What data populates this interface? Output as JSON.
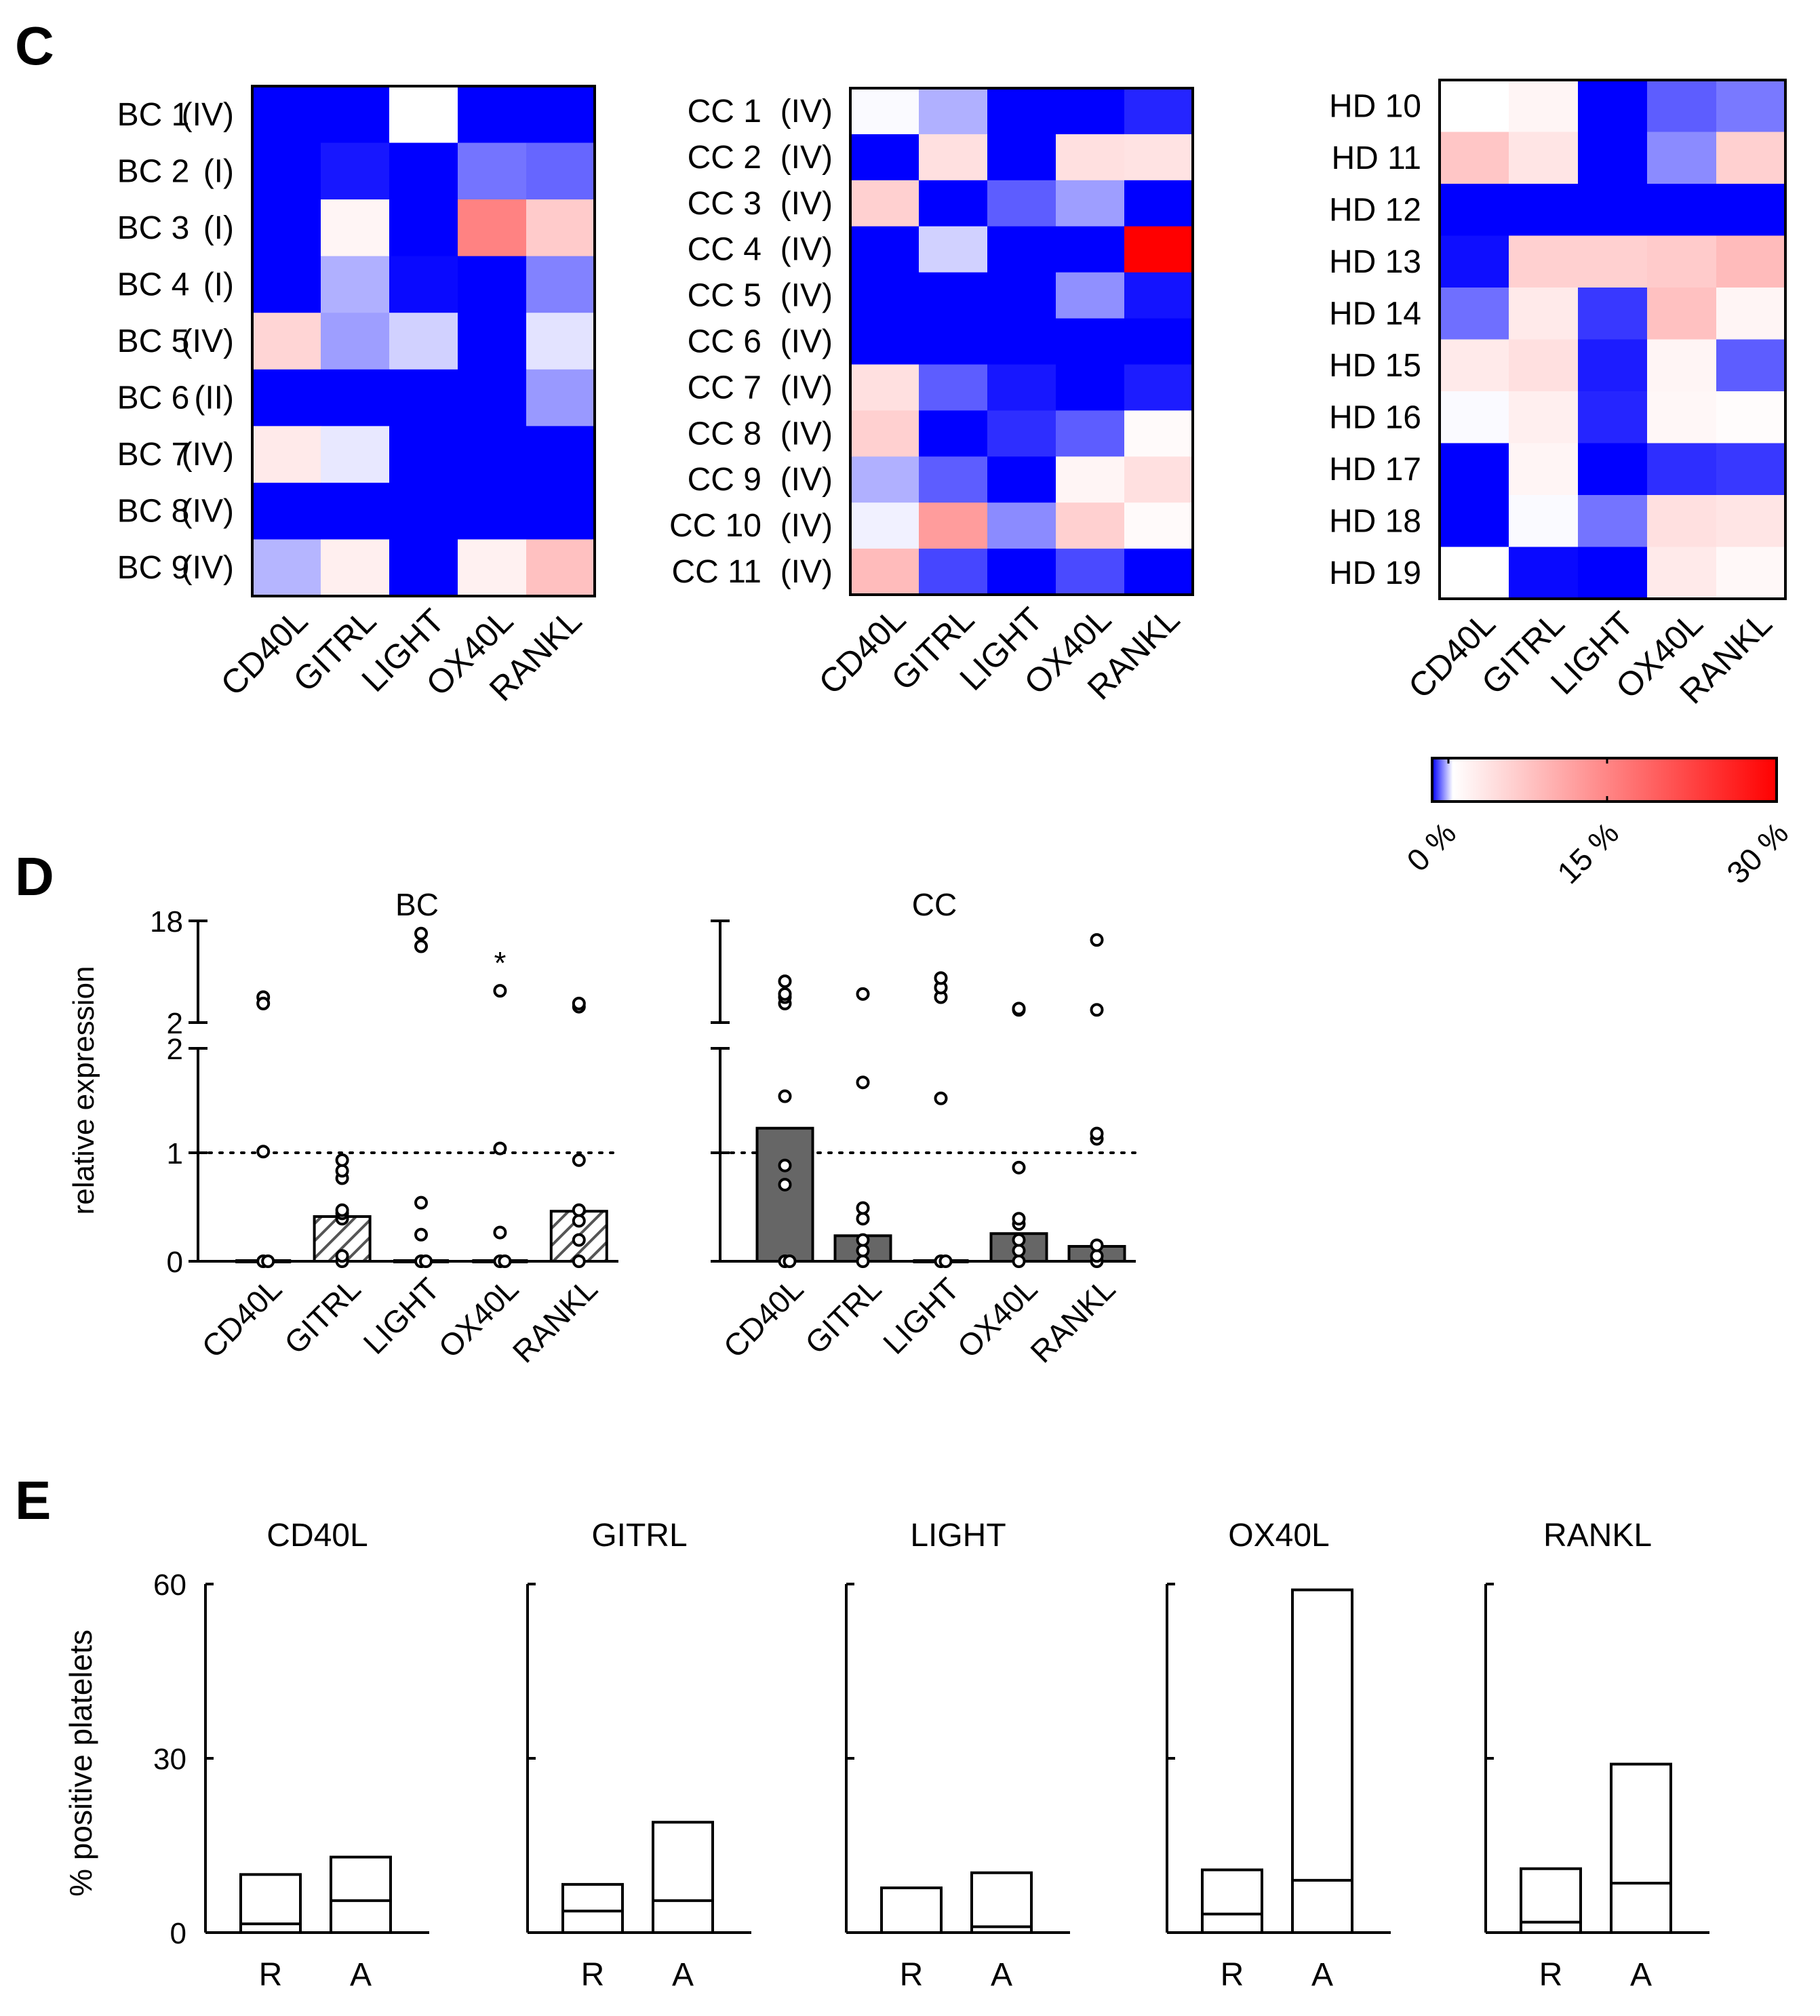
{
  "panels": {
    "c": "C",
    "d": "D",
    "e": "E"
  },
  "ligands": [
    "CD40L",
    "GITRL",
    "LIGHT",
    "OX40L",
    "RANKL"
  ],
  "heatmaps": [
    {
      "id": "bc",
      "rows": [
        {
          "name": "BC 1",
          "stage": "(IV)",
          "values": [
            0,
            0,
            5.5,
            0,
            0
          ]
        },
        {
          "name": "BC 2",
          "stage": "(I)",
          "values": [
            0,
            0.5,
            0,
            2.5,
            2.2
          ]
        },
        {
          "name": "BC 3",
          "stage": "(I)",
          "values": [
            0,
            6.5,
            0,
            17.5,
            10.5
          ]
        },
        {
          "name": "BC 4",
          "stage": "(I)",
          "values": [
            0,
            3.8,
            0.2,
            0,
            2.8
          ]
        },
        {
          "name": "BC 5",
          "stage": "(IV)",
          "values": [
            9.5,
            3.4,
            4.5,
            0,
            4.9
          ]
        },
        {
          "name": "BC 6",
          "stage": "(II)",
          "values": [
            0,
            0,
            0,
            0,
            3.3
          ]
        },
        {
          "name": "BC 7",
          "stage": "(IV)",
          "values": [
            7.5,
            5,
            0,
            0,
            0
          ]
        },
        {
          "name": "BC 8",
          "stage": "(IV)",
          "values": [
            0,
            0,
            0,
            0,
            0
          ]
        },
        {
          "name": "BC 9",
          "stage": "(IV)",
          "values": [
            3.9,
            7,
            0,
            6.8,
            11.5
          ]
        }
      ]
    },
    {
      "id": "cc",
      "rows": [
        {
          "name": "CC 1",
          "stage": "(IV)",
          "values": [
            5.4,
            3.8,
            0,
            0,
            0.8
          ]
        },
        {
          "name": "CC 2",
          "stage": "(IV)",
          "values": [
            0,
            8.5,
            0,
            8.5,
            8.2
          ]
        },
        {
          "name": "CC 3",
          "stage": "(IV)",
          "values": [
            10,
            0,
            2,
            3.4,
            0
          ]
        },
        {
          "name": "CC 4",
          "stage": "(IV)",
          "values": [
            0,
            4.5,
            0,
            0,
            30
          ]
        },
        {
          "name": "CC 5",
          "stage": "(IV)",
          "values": [
            0,
            0,
            0,
            3.1,
            0.4
          ]
        },
        {
          "name": "CC 6",
          "stage": "(IV)",
          "values": [
            0,
            0,
            0,
            0,
            0
          ]
        },
        {
          "name": "CC 7",
          "stage": "(IV)",
          "values": [
            8.5,
            2,
            0.5,
            0,
            0.6
          ]
        },
        {
          "name": "CC 8",
          "stage": "(IV)",
          "values": [
            10,
            0,
            1,
            2,
            6
          ]
        },
        {
          "name": "CC 9",
          "stage": "(IV)",
          "values": [
            3.8,
            2,
            0,
            6.5,
            8.5
          ]
        },
        {
          "name": "CC 10",
          "stage": "(IV)",
          "values": [
            5.2,
            15,
            3,
            10,
            6
          ]
        },
        {
          "name": "CC 11",
          "stage": "(IV)",
          "values": [
            12,
            1.5,
            0,
            1.6,
            0
          ]
        }
      ]
    },
    {
      "id": "hd",
      "rows": [
        {
          "name": "HD 10",
          "values": [
            5.5,
            6.5,
            0,
            2,
            2.6
          ]
        },
        {
          "name": "HD 11",
          "values": [
            11,
            8,
            0,
            3,
            10
          ]
        },
        {
          "name": "HD 12",
          "values": [
            0,
            0,
            0,
            0,
            0
          ]
        },
        {
          "name": "HD 13",
          "values": [
            0.3,
            10,
            10,
            10.5,
            12
          ]
        },
        {
          "name": "HD 14",
          "values": [
            2.4,
            7.5,
            1.2,
            11.5,
            6.5
          ]
        },
        {
          "name": "HD 15",
          "values": [
            7.5,
            8.5,
            0.6,
            6.5,
            2
          ]
        },
        {
          "name": "HD 16",
          "values": [
            5.4,
            7,
            0.8,
            6.3,
            5.8
          ]
        },
        {
          "name": "HD 17",
          "values": [
            0,
            6.5,
            0,
            1,
            1.2
          ]
        },
        {
          "name": "HD 18",
          "values": [
            0,
            5.4,
            2.5,
            8.5,
            8
          ]
        },
        {
          "name": "HD 19",
          "values": [
            5.5,
            0.2,
            0,
            7.5,
            6.2
          ]
        }
      ]
    }
  ],
  "colorbar": {
    "ticks": [
      "0 %",
      "15 %",
      "30 %"
    ],
    "colors": [
      "#0000ff",
      "#ffffff",
      "#ff0000"
    ],
    "range": [
      0,
      30
    ]
  },
  "chart_data": [
    {
      "type": "bar",
      "title": "BC",
      "categories": [
        "CD40L",
        "GITRL",
        "LIGHT",
        "OX40L",
        "RANKL"
      ],
      "values": [
        0,
        0.42,
        0,
        0,
        0.47
      ],
      "ylabel": "relative expression",
      "ylim": [
        0,
        18
      ],
      "ybreak": [
        2,
        2
      ],
      "yticks": [
        "0",
        "1",
        "2",
        "2",
        "18"
      ],
      "reference_line": 1,
      "fill": "hatched",
      "points": [
        [
          0,
          0,
          1.03,
          6,
          5
        ],
        [
          0,
          0.05,
          0.4,
          0.45,
          0.48,
          0.78,
          0.85,
          0.95
        ],
        [
          0,
          0,
          0.25,
          0.55,
          14,
          16
        ],
        [
          0,
          0,
          0.27,
          1.06,
          7
        ],
        [
          0,
          0.2,
          0.38,
          0.48,
          0.95,
          4.5,
          5
        ]
      ],
      "annotation": {
        "category": "OX40L",
        "text": "*"
      }
    },
    {
      "type": "bar",
      "title": "CC",
      "categories": [
        "CD40L",
        "GITRL",
        "LIGHT",
        "OX40L",
        "RANKL"
      ],
      "values": [
        1.25,
        0.24,
        0,
        0.26,
        0.14
      ],
      "ylim": [
        0,
        18
      ],
      "ybreak": [
        2,
        2
      ],
      "reference_line": 1,
      "fill": "dark",
      "points": [
        [
          0,
          0,
          0.72,
          0.9,
          1.55,
          5,
          6,
          6.5,
          8.5
        ],
        [
          0,
          0.1,
          0.2,
          0.4,
          0.5,
          1.68,
          6.5
        ],
        [
          0,
          0,
          1.53,
          6,
          7.5,
          9
        ],
        [
          0,
          0.1,
          0.2,
          0.35,
          0.4,
          0.88,
          4,
          4.2
        ],
        [
          0,
          0.05,
          0.15,
          1.15,
          1.2,
          4,
          15
        ]
      ]
    },
    {
      "type": "stacked_bar",
      "subplots": [
        {
          "title": "CD40L",
          "categories": [
            "R",
            "A"
          ],
          "inner": [
            1.5,
            5.5
          ],
          "total": [
            10,
            13
          ]
        },
        {
          "title": "GITRL",
          "categories": [
            "R",
            "A"
          ],
          "inner": [
            3.7,
            5.5
          ],
          "total": [
            8.3,
            19
          ]
        },
        {
          "title": "LIGHT",
          "categories": [
            "R",
            "A"
          ],
          "inner": [
            0,
            1
          ],
          "total": [
            7.7,
            10.3
          ]
        },
        {
          "title": "OX40L",
          "categories": [
            "R",
            "A"
          ],
          "inner": [
            3.2,
            9
          ],
          "total": [
            10.8,
            59
          ]
        },
        {
          "title": "RANKL",
          "categories": [
            "R",
            "A"
          ],
          "inner": [
            1.8,
            8.5
          ],
          "total": [
            11,
            29
          ]
        }
      ],
      "ylabel": "% positive platelets",
      "ylim": [
        0,
        60
      ],
      "yticks": [
        "0",
        "30",
        "60"
      ]
    }
  ]
}
